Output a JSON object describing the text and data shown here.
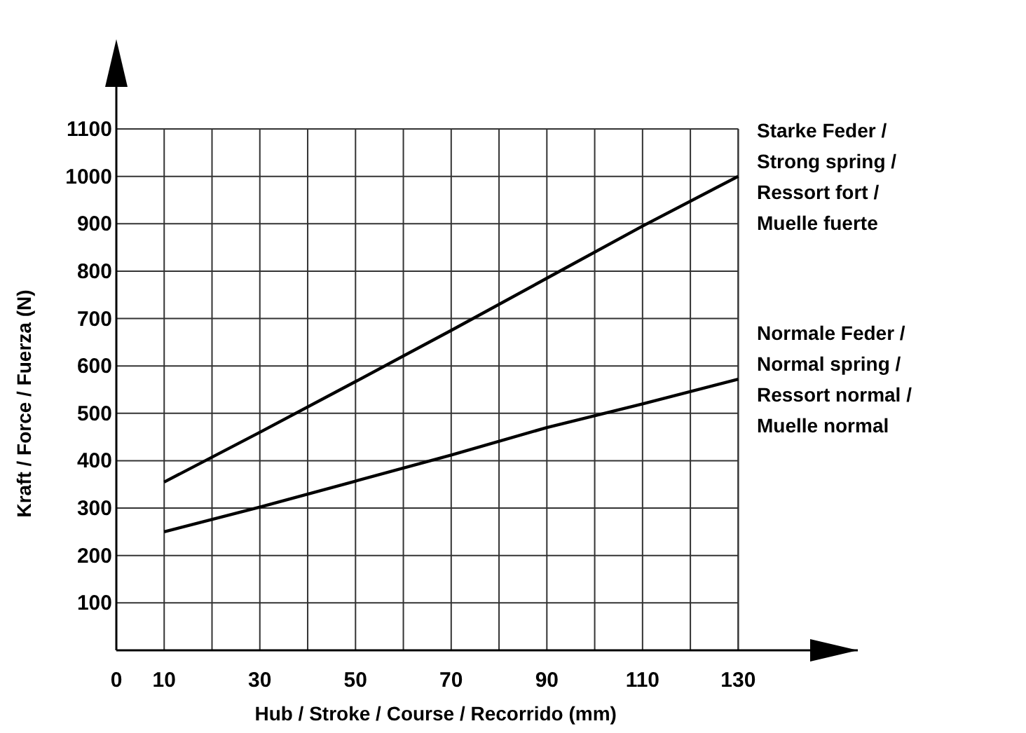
{
  "chart_data": {
    "type": "line",
    "xlabel": "Hub / Stroke / Course / Recorrido (mm)",
    "ylabel": "Kraft / Force / Fuerza (N)",
    "x": [
      10,
      30,
      50,
      70,
      90,
      110,
      130
    ],
    "series": [
      {
        "name": "Starke Feder / Strong spring / Ressort fort / Muelle fuerte",
        "color": "#000000",
        "values": [
          355,
          460,
          567,
          675,
          785,
          895,
          1000
        ]
      },
      {
        "name": "Normale Feder / Normal spring / Ressort normal / Muelle normal",
        "color": "#000000",
        "values": [
          250,
          302,
          357,
          412,
          470,
          520,
          572
        ]
      }
    ],
    "xlim": [
      0,
      155
    ],
    "ylim": [
      0,
      1100
    ],
    "xticks": [
      0,
      10,
      {
        "value": 20,
        "label": null
      },
      30,
      {
        "value": 40,
        "label": null
      },
      50,
      {
        "value": 60,
        "label": null
      },
      70,
      {
        "value": 80,
        "label": null
      },
      90,
      {
        "value": 100,
        "label": null
      },
      110,
      {
        "value": 120,
        "label": null
      },
      130
    ],
    "yticks": [
      100,
      200,
      300,
      400,
      500,
      600,
      700,
      800,
      900,
      1000,
      1100
    ],
    "grid": true,
    "marker": "none",
    "line_style": "solid"
  }
}
